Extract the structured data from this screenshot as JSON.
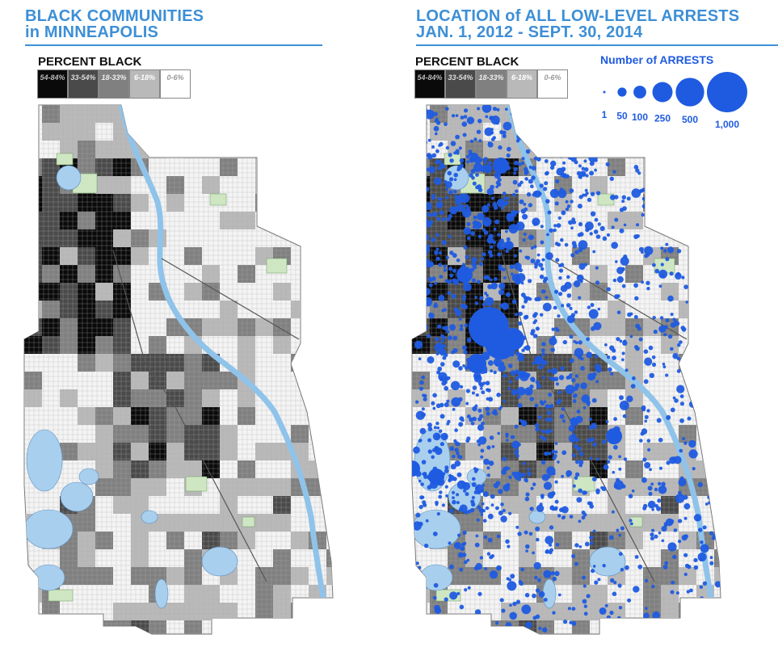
{
  "left_panel": {
    "title_line1": "BLACK COMMUNITIES",
    "title_line2": "in MINNEAPOLIS",
    "legend_title": "PERCENT BLACK"
  },
  "right_panel": {
    "title_line1": "LOCATION of ALL LOW-LEVEL ARRESTS",
    "title_line2": "JAN. 1, 2012 - SEPT. 30, 2014",
    "legend_title": "PERCENT BLACK"
  },
  "percent_black_legend": [
    {
      "label": "54-84%",
      "color": "#0a0a0a",
      "text_color": "#bbbbbb"
    },
    {
      "label": "33-54%",
      "color": "#4a4a4a",
      "text_color": "#dddddd"
    },
    {
      "label": "18-33%",
      "color": "#808080",
      "text_color": "#eeeeee"
    },
    {
      "label": "6-18%",
      "color": "#b9b9b9",
      "text_color": "#ffffff"
    },
    {
      "label": "0-6%",
      "color": "#ffffff",
      "text_color": "#999999"
    }
  ],
  "arrests_legend": {
    "title": "Number of ARRESTS",
    "color": "#1f5be0",
    "items": [
      {
        "label": "1",
        "value": 1
      },
      {
        "label": "50",
        "value": 50
      },
      {
        "label": "100",
        "value": 100
      },
      {
        "label": "250",
        "value": 250
      },
      {
        "label": "500",
        "value": 500
      },
      {
        "label": "1,000",
        "value": 1000
      }
    ]
  },
  "map_colors": {
    "land": "#f4f4f4",
    "water": "#a9cfee",
    "river": "#8fc3ea",
    "park": "#cfe6c3",
    "street": "#b0b0b0"
  }
}
